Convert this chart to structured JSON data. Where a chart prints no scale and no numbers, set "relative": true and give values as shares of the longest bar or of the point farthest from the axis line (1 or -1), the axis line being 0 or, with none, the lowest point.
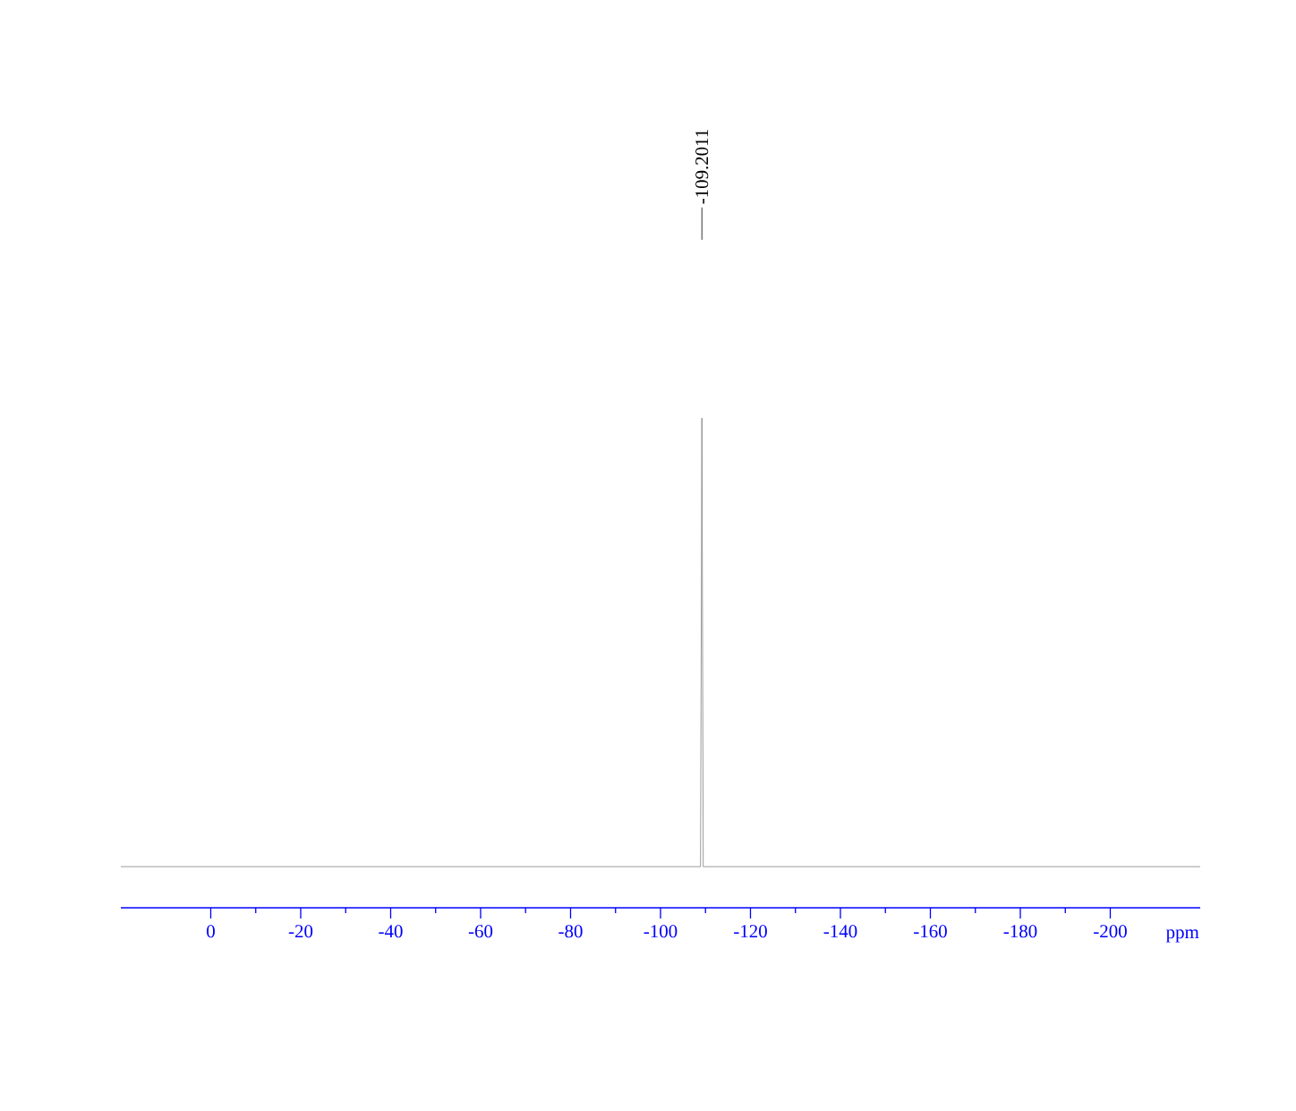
{
  "chart_data": {
    "type": "line",
    "relative": true,
    "xlabel": "ppm",
    "xlim": [
      20,
      -220
    ],
    "xticks": [
      0,
      -20,
      -40,
      -60,
      -80,
      -100,
      -120,
      -140,
      -160,
      -180,
      -200
    ],
    "series": [
      {
        "color": "#808080",
        "x": [
          20,
          -108.9,
          -109.2,
          -109.5,
          -220
        ],
        "values": [
          0.084,
          0.084,
          1,
          0.084,
          0.084
        ]
      }
    ],
    "annotations": [
      {
        "text": "-109.2011",
        "x": -109.2011
      }
    ]
  }
}
